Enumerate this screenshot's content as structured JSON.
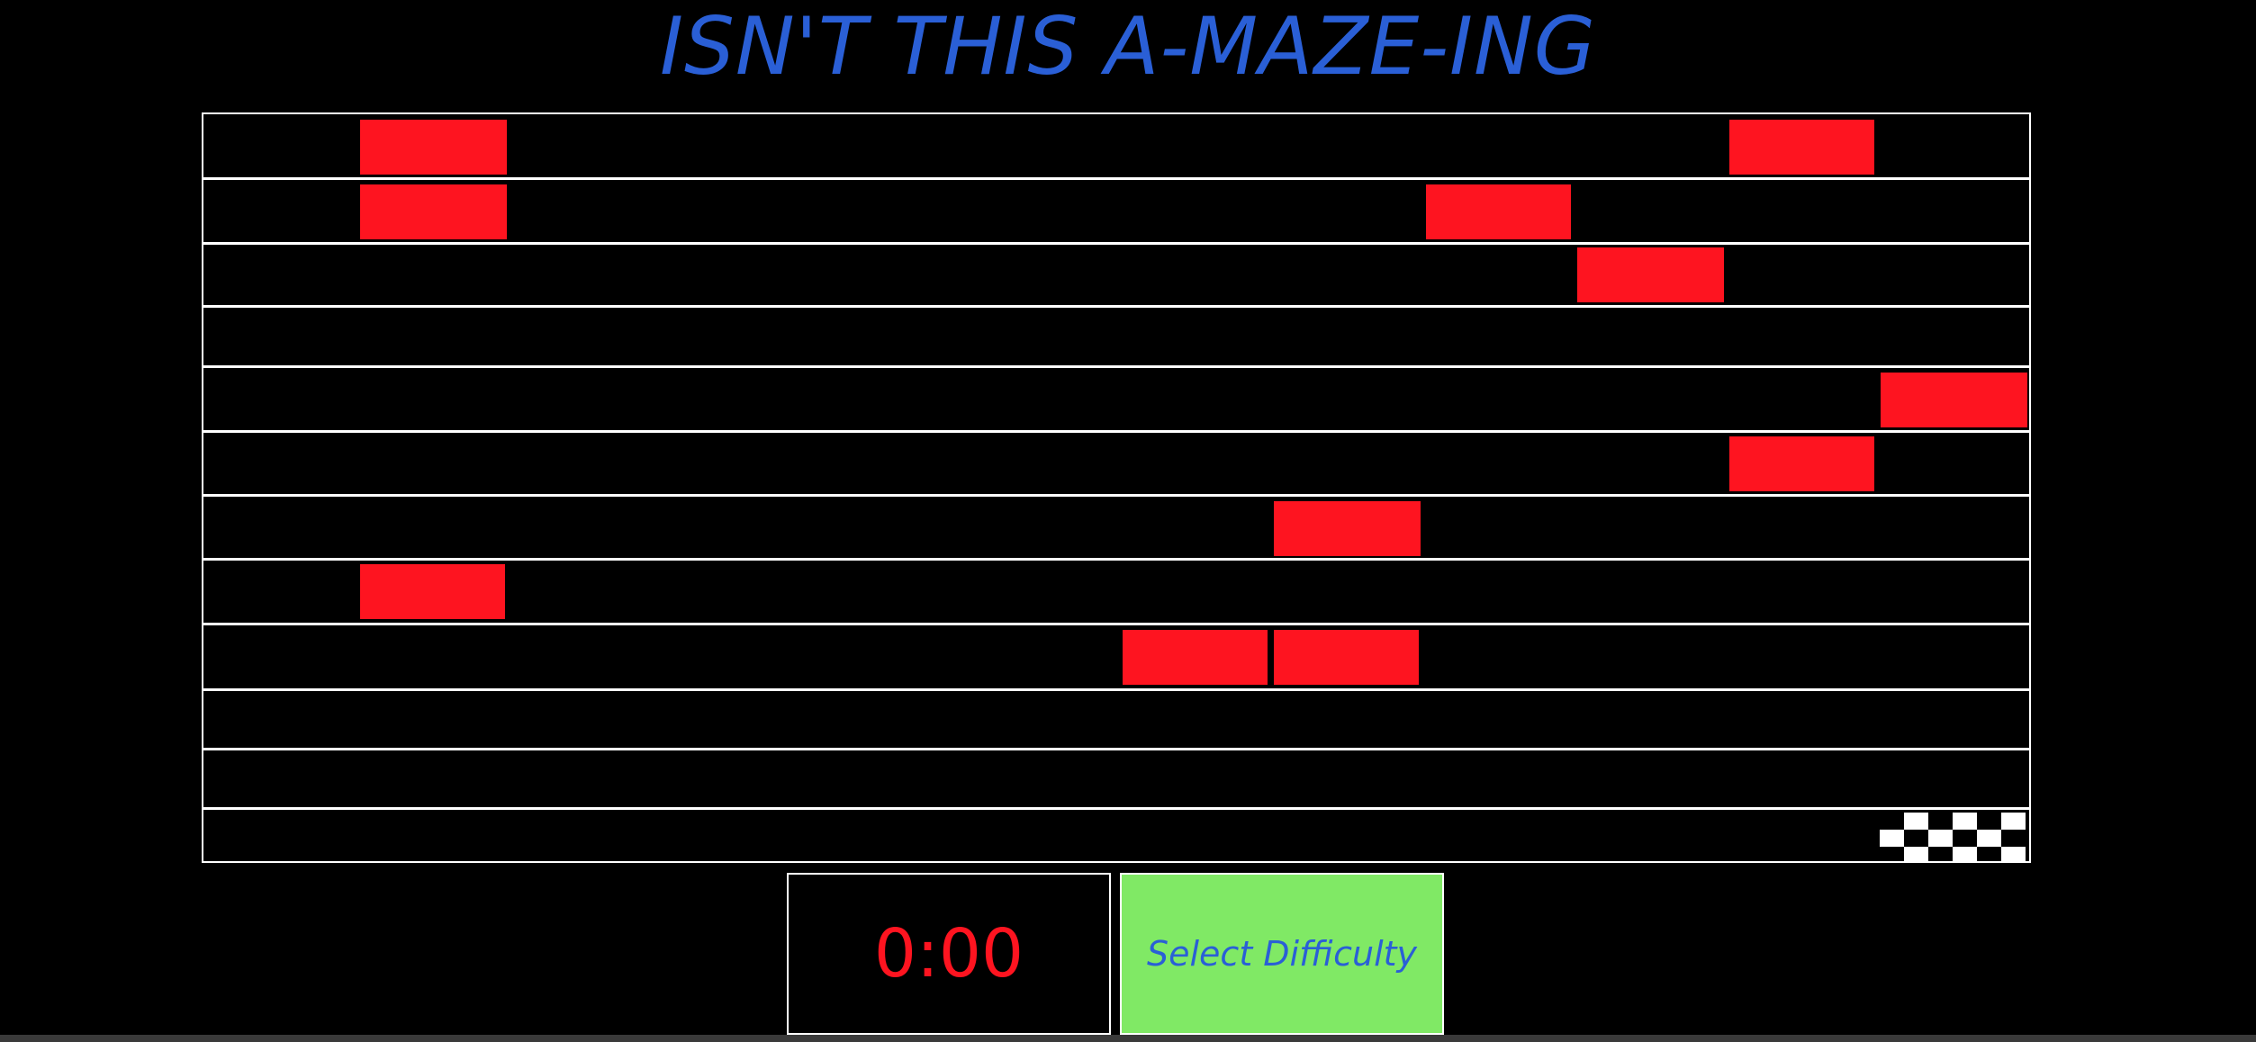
{
  "title": "ISN'T THIS A-MAZE-ING",
  "timer": "0:00",
  "difficulty_button": "Select Difficulty",
  "colors": {
    "background": "#000000",
    "title": "#2a5fd6",
    "wall": "#ffffff",
    "obstacle": "#fe1420",
    "timer_text": "#fe1420",
    "button_bg": "#80e965",
    "button_text": "#2a5fd6"
  },
  "icons": {
    "finish": "checkered-flag-icon"
  }
}
